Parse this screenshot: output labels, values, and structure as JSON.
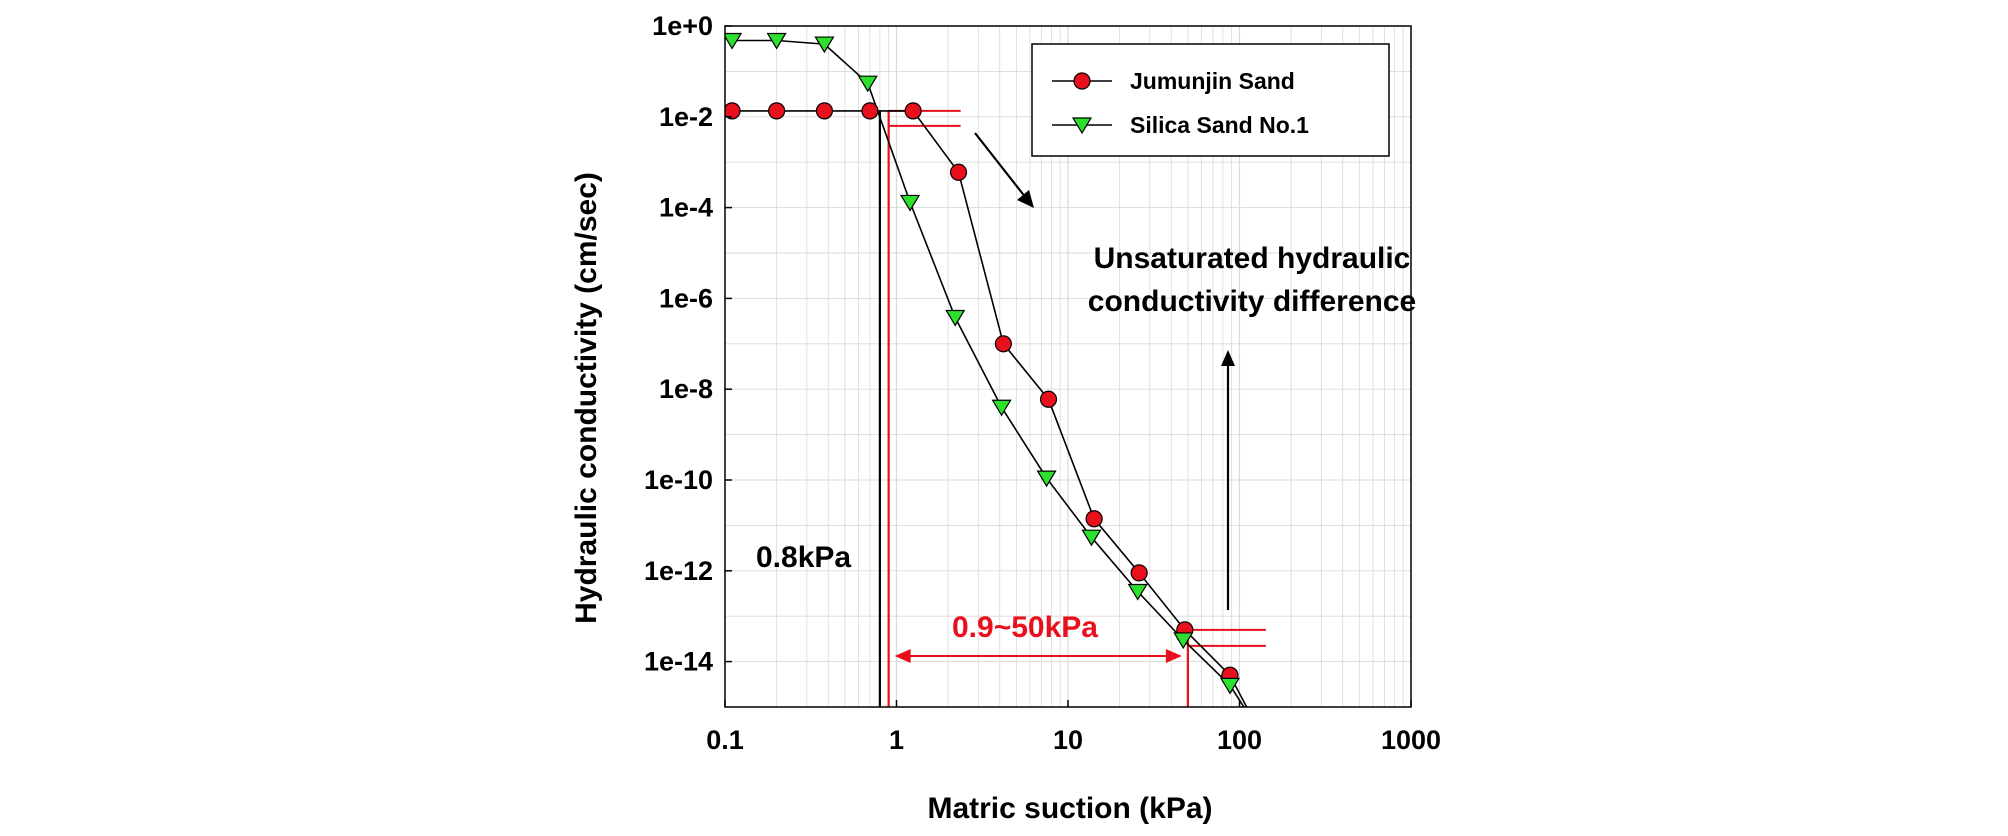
{
  "chart_data": {
    "type": "scatter",
    "xlabel": "Matric suction (kPa)",
    "ylabel": "Hydraulic conductivity (cm/sec)",
    "x_scale": "log",
    "y_scale": "log",
    "xlim": [
      0.1,
      1000
    ],
    "ylim": [
      1e-15,
      1
    ],
    "x_ticks": [
      0.1,
      1,
      10,
      100,
      1000
    ],
    "x_tick_labels": [
      "0.1",
      "1",
      "10",
      "100",
      "1000"
    ],
    "y_ticks": [
      1,
      0.01,
      0.0001,
      1e-06,
      1e-08,
      1e-10,
      1e-12,
      1e-14
    ],
    "y_tick_labels": [
      "1e+0",
      "1e-2",
      "1e-4",
      "1e-6",
      "1e-8",
      "1e-10",
      "1e-12",
      "1e-14"
    ],
    "grid": true,
    "legend_position": "top-right",
    "series": [
      {
        "name": "Jumunjin Sand",
        "marker": "circle",
        "color": "#e8101c",
        "points": [
          [
            0.11,
            0.0135
          ],
          [
            0.2,
            0.0135
          ],
          [
            0.38,
            0.0135
          ],
          [
            0.7,
            0.0135
          ],
          [
            1.25,
            0.0135
          ],
          [
            2.3,
            0.0006
          ],
          [
            4.2,
            1e-07
          ],
          [
            7.7,
            6e-09
          ],
          [
            14.2,
            1.4e-11
          ],
          [
            26,
            9e-13
          ],
          [
            48,
            5e-14
          ],
          [
            88,
            5e-15
          ],
          [
            130,
            3e-16
          ]
        ]
      },
      {
        "name": "Silica Sand No.1",
        "marker": "triangle-down",
        "color": "#2ee02e",
        "points": [
          [
            0.11,
            0.48
          ],
          [
            0.2,
            0.48
          ],
          [
            0.38,
            0.4
          ],
          [
            0.68,
            0.055
          ],
          [
            1.2,
            0.00013
          ],
          [
            2.2,
            3.8e-07
          ],
          [
            4.1,
            4e-09
          ],
          [
            7.5,
            1.1e-10
          ],
          [
            13.7,
            5.5e-12
          ],
          [
            25.5,
            3.5e-13
          ],
          [
            47,
            3e-14
          ],
          [
            88,
            3e-15
          ],
          [
            130,
            3e-16
          ]
        ]
      }
    ],
    "annotations": {
      "suction_0_8_label": "0.8kPa",
      "range_label": "0.9~50kPa",
      "difference_label_line1": "Unsaturated hydraulic",
      "difference_label_line2": "conductivity difference",
      "vline_0_8": 0.8,
      "vline_0_9": 0.9,
      "vline_50": 50
    }
  },
  "colors": {
    "red": "#e8101c",
    "green": "#2ee02e",
    "black": "#000000",
    "grid": "#d9d9d9"
  }
}
